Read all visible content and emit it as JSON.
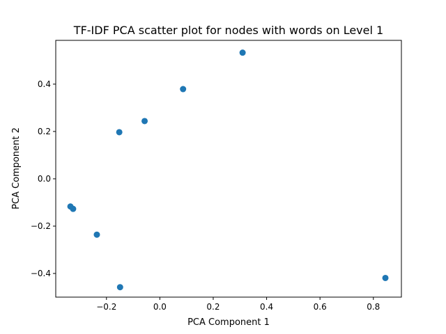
{
  "chart_data": {
    "type": "scatter",
    "title": "TF-IDF PCA scatter plot for nodes with words on Level 1",
    "xlabel": "PCA Component 1",
    "ylabel": "PCA Component 2",
    "xlim": [
      -0.39,
      0.905
    ],
    "ylim": [
      -0.5,
      0.585
    ],
    "xticks": [
      -0.2,
      0.0,
      0.2,
      0.4,
      0.6,
      0.8
    ],
    "xtick_labels": [
      "−0.2",
      "0.0",
      "0.2",
      "0.4",
      "0.6",
      "0.8"
    ],
    "yticks": [
      -0.4,
      -0.2,
      0.0,
      0.2,
      0.4
    ],
    "ytick_labels": [
      "−0.4",
      "−0.2",
      "0.0",
      "0.2",
      "0.4"
    ],
    "grid": false,
    "marker_color": "#1f77b4",
    "points": [
      {
        "x": 0.31,
        "y": 0.533
      },
      {
        "x": 0.087,
        "y": 0.379
      },
      {
        "x": -0.057,
        "y": 0.244
      },
      {
        "x": -0.152,
        "y": 0.197
      },
      {
        "x": -0.335,
        "y": -0.117
      },
      {
        "x": -0.325,
        "y": -0.127
      },
      {
        "x": -0.236,
        "y": -0.236
      },
      {
        "x": -0.149,
        "y": -0.458
      },
      {
        "x": 0.845,
        "y": -0.419
      }
    ]
  }
}
